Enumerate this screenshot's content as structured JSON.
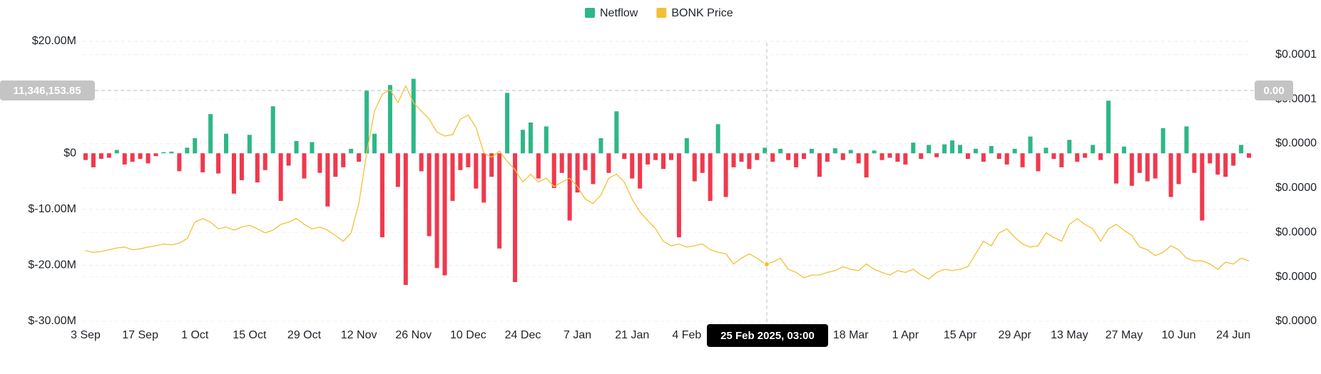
{
  "chart_data": {
    "type": "bar-line",
    "legend_position": "top",
    "categories": [
      "3 Sep",
      null,
      null,
      null,
      null,
      null,
      null,
      "17 Sep",
      null,
      null,
      null,
      null,
      null,
      null,
      "1 Oct",
      null,
      null,
      null,
      null,
      null,
      null,
      "15 Oct",
      null,
      null,
      null,
      null,
      null,
      null,
      "29 Oct",
      null,
      null,
      null,
      null,
      null,
      null,
      "12 Nov",
      null,
      null,
      null,
      null,
      null,
      null,
      "26 Nov",
      null,
      null,
      null,
      null,
      null,
      null,
      "10 Dec",
      null,
      null,
      null,
      null,
      null,
      null,
      "24 Dec",
      null,
      null,
      null,
      null,
      null,
      null,
      "7 Jan",
      null,
      null,
      null,
      null,
      null,
      null,
      "21 Jan",
      null,
      null,
      null,
      null,
      null,
      null,
      "4 Feb",
      null,
      null,
      null,
      null,
      null,
      null,
      null,
      null,
      null,
      null,
      null,
      null,
      null,
      null,
      null,
      null,
      null,
      null,
      null,
      null,
      "18 Mar",
      null,
      null,
      null,
      null,
      null,
      null,
      "1 Apr",
      null,
      null,
      null,
      null,
      null,
      null,
      "15 Apr",
      null,
      null,
      null,
      null,
      null,
      null,
      "29 Apr",
      null,
      null,
      null,
      null,
      null,
      null,
      "13 May",
      null,
      null,
      null,
      null,
      null,
      null,
      "27 May",
      null,
      null,
      null,
      null,
      null,
      null,
      "10 Jun",
      null,
      null,
      null,
      null,
      null,
      null,
      "24 Jun",
      null,
      null
    ],
    "series": [
      {
        "name": "Netflow",
        "color": "#2db787",
        "negative_color": "#f0394d",
        "type": "bar",
        "values": [
          -1200000.0,
          -2500000.0,
          -1000000.0,
          -800000.0,
          600000.0,
          -2000000.0,
          -1500000.0,
          -1000000.0,
          -1800000.0,
          -500000.0,
          200000.0,
          300000.0,
          -3200000.0,
          1000000.0,
          2700000.0,
          -3400000.0,
          7000000.0,
          -3600000.0,
          3500000.0,
          -7200000.0,
          -4800000.0,
          3300000.0,
          -5200000.0,
          -3000000.0,
          8400000.0,
          -8500000.0,
          -2200000.0,
          2200000.0,
          -4500000.0,
          2000000.0,
          -3500000.0,
          -9500000.0,
          -4200000.0,
          -2500000.0,
          800000.0,
          -1500000.0,
          11200000.0,
          3500000.0,
          -15000000.0,
          12200000.0,
          -6000000.0,
          -23500000.0,
          13300000.0,
          -3200000.0,
          -14800000.0,
          -20500000.0,
          -21800000.0,
          -8500000.0,
          -3000000.0,
          -2500000.0,
          -6300000.0,
          -8800000.0,
          -4200000.0,
          -17000000.0,
          10800000.0,
          -23000000.0,
          4200000.0,
          5500000.0,
          -4500000.0,
          4800000.0,
          -6200000.0,
          -3500000.0,
          -12000000.0,
          -7000000.0,
          -3000000.0,
          -5500000.0,
          2700000.0,
          -3500000.0,
          7500000.0,
          -1000000.0,
          -4500000.0,
          -6300000.0,
          -2000000.0,
          -1200000.0,
          -2800000.0,
          -1200000.0,
          -15000000.0,
          2700000.0,
          -5000000.0,
          -3500000.0,
          -8500000.0,
          5200000.0,
          -7800000.0,
          -2500000.0,
          -1500000.0,
          -2800000.0,
          -1200000.0,
          1000000.0,
          -1500000.0,
          800000.0,
          -1200000.0,
          -2500000.0,
          -1000000.0,
          800000.0,
          -4200000.0,
          -1500000.0,
          900000.0,
          -1200000.0,
          600000.0,
          -1800000.0,
          -4300000.0,
          500000.0,
          -1200000.0,
          -800000.0,
          -1500000.0,
          -2000000.0,
          1900000.0,
          -1000000.0,
          1500000.0,
          -700000.0,
          1600000.0,
          2300000.0,
          1500000.0,
          -1000000.0,
          800000.0,
          -1500000.0,
          1300000.0,
          -1000000.0,
          -2000000.0,
          800000.0,
          -2500000.0,
          3000000.0,
          -3200000.0,
          1000000.0,
          -1000000.0,
          -2500000.0,
          2400000.0,
          -1500000.0,
          -800000.0,
          1500000.0,
          -1200000.0,
          9400000.0,
          -5400000.0,
          1200000.0,
          -5800000.0,
          -3500000.0,
          -5000000.0,
          -4500000.0,
          4500000.0,
          -7800000.0,
          -5500000.0,
          4800000.0,
          -3500000.0,
          -12000000.0,
          -1800000.0,
          -3800000.0,
          -4200000.0,
          -2200000.0,
          1500000.0,
          -800000.0
        ]
      },
      {
        "name": "BONK Price",
        "color": "#f2c037",
        "type": "line",
        "axis": "y2",
        "values": [
          1.59e-05,
          1.55e-05,
          1.57e-05,
          1.61e-05,
          1.65e-05,
          1.67e-05,
          1.61e-05,
          1.63e-05,
          1.67e-05,
          1.7e-05,
          1.74e-05,
          1.72e-05,
          1.76e-05,
          1.86e-05,
          2.23e-05,
          2.31e-05,
          2.23e-05,
          2.08e-05,
          2.12e-05,
          2.05e-05,
          2.12e-05,
          2.16e-05,
          2.08e-05,
          1.99e-05,
          2.05e-05,
          2.18e-05,
          2.23e-05,
          2.31e-05,
          2.18e-05,
          2.08e-05,
          2.12e-05,
          2.05e-05,
          1.93e-05,
          1.8e-05,
          1.99e-05,
          2.65e-05,
          3.79e-05,
          4.73e-05,
          5.11e-05,
          5.21e-05,
          4.92e-05,
          5.3e-05,
          4.92e-05,
          4.73e-05,
          4.55e-05,
          4.26e-05,
          4.17e-05,
          4.2e-05,
          4.55e-05,
          4.64e-05,
          4.36e-05,
          3.79e-05,
          3.69e-05,
          3.83e-05,
          3.6e-05,
          3.41e-05,
          3.13e-05,
          3.31e-05,
          3.13e-05,
          3.22e-05,
          3.03e-05,
          3.13e-05,
          3.22e-05,
          3.03e-05,
          2.75e-05,
          2.65e-05,
          2.84e-05,
          3.22e-05,
          3.31e-05,
          3.13e-05,
          2.75e-05,
          2.46e-05,
          2.27e-05,
          2.08e-05,
          1.8e-05,
          1.7e-05,
          1.74e-05,
          1.67e-05,
          1.7e-05,
          1.74e-05,
          1.61e-05,
          1.55e-05,
          1.52e-05,
          1.29e-05,
          1.42e-05,
          1.52e-05,
          1.42e-05,
          1.29e-05,
          1.33e-05,
          1.42e-05,
          1.17e-05,
          1.1e-05,
          9.8e-06,
          1.04e-05,
          1.04e-05,
          1.1e-05,
          1.14e-05,
          1.23e-05,
          1.17e-05,
          1.14e-05,
          1.29e-05,
          1.17e-05,
          1.1e-05,
          1.04e-05,
          1.14e-05,
          1.1e-05,
          1.17e-05,
          1.04e-05,
          9.5e-06,
          1.1e-05,
          1.17e-05,
          1.14e-05,
          1.17e-05,
          1.23e-05,
          1.52e-05,
          1.8e-05,
          1.7e-05,
          1.99e-05,
          2.08e-05,
          1.89e-05,
          1.74e-05,
          1.67e-05,
          1.7e-05,
          1.99e-05,
          1.89e-05,
          1.8e-05,
          2.18e-05,
          2.31e-05,
          2.18e-05,
          2.08e-05,
          1.8e-05,
          2.08e-05,
          2.18e-05,
          2.05e-05,
          1.93e-05,
          1.67e-05,
          1.61e-05,
          1.48e-05,
          1.55e-05,
          1.7e-05,
          1.61e-05,
          1.42e-05,
          1.36e-05,
          1.36e-05,
          1.29e-05,
          1.17e-05,
          1.33e-05,
          1.29e-05,
          1.42e-05,
          1.36e-05
        ]
      }
    ],
    "ylim": [
      -30000000,
      20000000
    ],
    "yticks": [
      {
        "value": 20000000,
        "label": "$20.00M"
      },
      {
        "value": 0,
        "label": "$0"
      },
      {
        "value": -10000000,
        "label": "$-10.00M"
      },
      {
        "value": -20000000,
        "label": "$-20.00M"
      },
      {
        "value": -30000000,
        "label": "$-30.00M"
      }
    ],
    "y2lim": [
      0,
      6.3e-05
    ],
    "y2ticks": [
      {
        "value": 6e-05,
        "label": "$0.0001"
      },
      {
        "value": 5e-05,
        "label": "$0.0001"
      },
      {
        "value": 4e-05,
        "label": "$0.0000"
      },
      {
        "value": 3e-05,
        "label": "$0.0000"
      },
      {
        "value": 2e-05,
        "label": "$0.0000"
      },
      {
        "value": 1e-05,
        "label": "$0.0000"
      },
      {
        "value": 0,
        "label": "$0.0000"
      }
    ],
    "grid": true,
    "crosshair": {
      "x_label": "25 Feb 2025, 03:00",
      "y_label": "11,346,153.85",
      "y2_label": "0.00"
    }
  }
}
